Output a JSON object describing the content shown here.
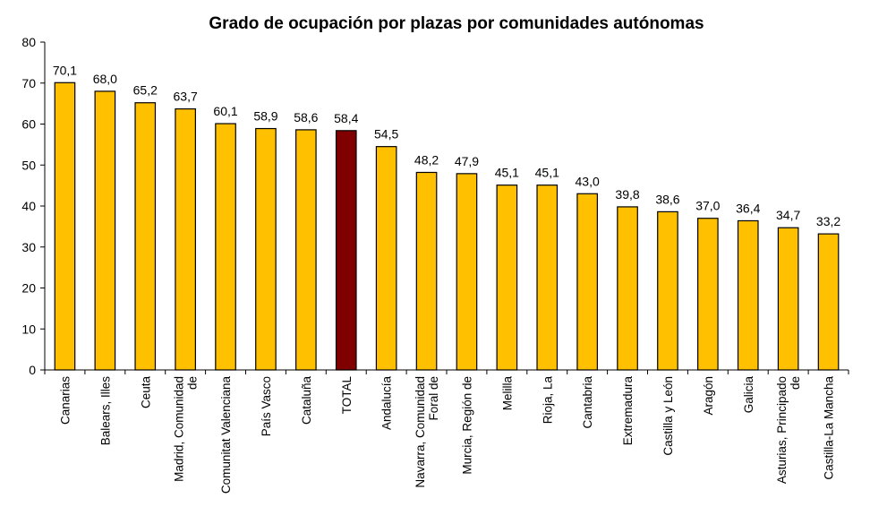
{
  "chart_data": {
    "type": "bar",
    "title": "Grado de ocupación por plazas por comunidades autónomas",
    "xlabel": "",
    "ylabel": "",
    "ylim": [
      0,
      80
    ],
    "yticks": [
      0,
      10,
      20,
      30,
      40,
      50,
      60,
      70,
      80
    ],
    "grid": false,
    "legend": "none",
    "categories": [
      "Canarias",
      "Balears, Illes",
      "Ceuta",
      "Madrid, Comunidad de",
      "Comunitat Valenciana",
      "País Vasco",
      "Cataluña",
      "TOTAL",
      "Andalucía",
      "Navarra, Comunidad Foral de",
      "Murcia, Región de",
      "Melilla",
      "Rioja, La",
      "Cantabria",
      "Extremadura",
      "Castilla y León",
      "Aragón",
      "Galicia",
      "Asturias, Principado de",
      "Castilla-La Mancha"
    ],
    "tick_label_lines": [
      [
        "Canarias"
      ],
      [
        "Balears, Illes"
      ],
      [
        "Ceuta"
      ],
      [
        "Madrid, Comunidad",
        "de"
      ],
      [
        "Comunitat Valenciana"
      ],
      [
        "País Vasco"
      ],
      [
        "Cataluña"
      ],
      [
        "TOTAL"
      ],
      [
        "Andalucía"
      ],
      [
        "Navarra, Comunidad",
        "Foral de"
      ],
      [
        "Murcia, Región de"
      ],
      [
        "Melilla"
      ],
      [
        "Rioja, La"
      ],
      [
        "Cantabria"
      ],
      [
        "Extremadura"
      ],
      [
        "Castilla y León"
      ],
      [
        "Aragón"
      ],
      [
        "Galicia"
      ],
      [
        "Asturias, Principado",
        "de"
      ],
      [
        "Castilla-La Mancha"
      ]
    ],
    "values": [
      70.1,
      68.0,
      65.2,
      63.7,
      60.1,
      58.9,
      58.6,
      58.4,
      54.5,
      48.2,
      47.9,
      45.1,
      45.1,
      43.0,
      39.8,
      38.6,
      37.0,
      36.4,
      34.7,
      33.2
    ],
    "data_labels": [
      "70,1",
      "68,0",
      "65,2",
      "63,7",
      "60,1",
      "58,9",
      "58,6",
      "58,4",
      "54,5",
      "48,2",
      "47,9",
      "45,1",
      "45,1",
      "43,0",
      "39,8",
      "38,6",
      "37,0",
      "36,4",
      "34,7",
      "33,2"
    ],
    "highlight_category": "TOTAL",
    "colors": {
      "bar": "#FFC000",
      "highlight_bar": "#800000",
      "bar_stroke": "#000000",
      "axis": "#000000"
    }
  }
}
